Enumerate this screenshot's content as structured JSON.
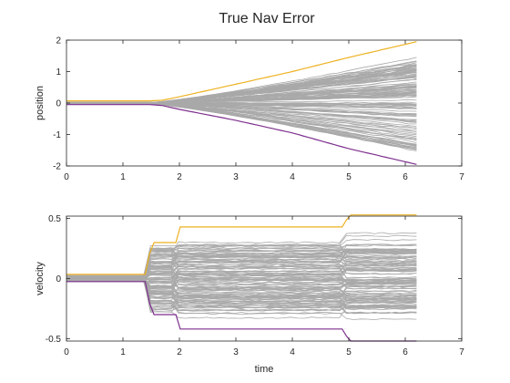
{
  "title": "True Nav Error",
  "colors": {
    "upper_bound": "#EDB120",
    "lower_bound": "#7E2F8E",
    "samples": "#A9A9A9",
    "axes": "#262626",
    "background": "#FFFFFF"
  },
  "chart_data": [
    {
      "type": "line",
      "title": "True Nav Error",
      "xlabel": "",
      "ylabel": "position",
      "xlim": [
        0,
        7
      ],
      "ylim": [
        -2,
        2
      ],
      "xticks": [
        0,
        1,
        2,
        3,
        4,
        5,
        6,
        7
      ],
      "yticks": [
        -2,
        -1,
        0,
        1,
        2
      ],
      "xtick_labels": [
        "0",
        "1",
        "2",
        "3",
        "4",
        "5",
        "6",
        "7"
      ],
      "ytick_labels": [
        "-2",
        "-1",
        "0",
        "1",
        "2"
      ],
      "grid": false,
      "bounds": {
        "x": [
          0,
          1.5,
          1.7,
          2.0,
          3.0,
          4.0,
          5.0,
          6.2
        ],
        "upper": [
          0.07,
          0.07,
          0.09,
          0.2,
          0.6,
          1.0,
          1.45,
          1.95
        ],
        "lower": [
          -0.05,
          -0.05,
          -0.08,
          -0.2,
          -0.55,
          -0.95,
          -1.45,
          -1.95
        ]
      },
      "samples": {
        "count": 120,
        "x_end": 6.2,
        "spread_start": 1.5,
        "end_range": [
          -1.55,
          1.45
        ],
        "description_of_sampling": ""
      }
    },
    {
      "type": "line",
      "title": "",
      "xlabel": "time",
      "ylabel": "velocity",
      "xlim": [
        0,
        7
      ],
      "ylim": [
        -0.52,
        0.52
      ],
      "xticks": [
        0,
        1,
        2,
        3,
        4,
        5,
        6,
        7
      ],
      "yticks": [
        -0.5,
        0,
        0.5
      ],
      "xtick_labels": [
        "0",
        "1",
        "2",
        "3",
        "4",
        "5",
        "6",
        "7"
      ],
      "ytick_labels": [
        "-0.5",
        "0",
        "0.5"
      ],
      "grid": false,
      "bounds": {
        "x": [
          0,
          1.42,
          1.5,
          1.95,
          2.0,
          4.9,
          5.0,
          6.2
        ],
        "upper": [
          0.035,
          0.035,
          0.3,
          0.3,
          0.43,
          0.43,
          0.53,
          0.53
        ],
        "lower": [
          -0.025,
          -0.025,
          -0.3,
          -0.3,
          -0.42,
          -0.42,
          -0.52,
          -0.52
        ]
      },
      "samples": {
        "count": 120,
        "x_end": 6.2,
        "step_times": [
          1.42,
          1.95,
          4.9
        ],
        "end_range": [
          -0.5,
          0.52
        ]
      }
    }
  ]
}
